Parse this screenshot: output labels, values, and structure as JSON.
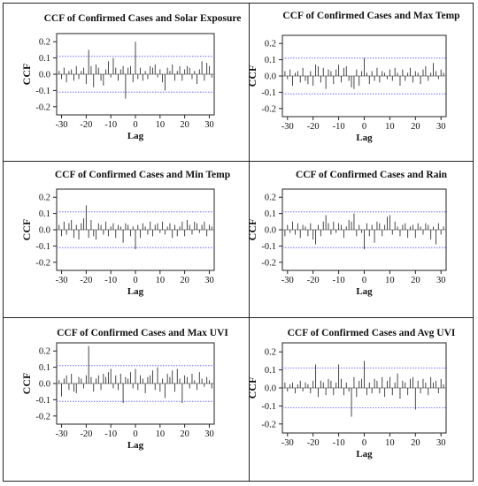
{
  "charts": [
    {
      "title": "CCF of Confirmed Cases and Solar Exposure",
      "ylabel": "CCF",
      "xlabel": "Lag"
    },
    {
      "title": "CCF of Confirmed Cases and Max Temp",
      "ylabel": "CCF",
      "xlabel": "Lag"
    },
    {
      "title": "CCF of Confirmed Cases and Min Temp",
      "ylabel": "CCF",
      "xlabel": "Lag"
    },
    {
      "title": "CCF of Confirmed Cases and Rain",
      "ylabel": "CCF",
      "xlabel": "Lag"
    },
    {
      "title": "CCF of Confirmed Cases and Max UVI",
      "ylabel": "CCF",
      "xlabel": "Lag"
    },
    {
      "title": "CCF of Confirmed Cases and Avg UVI",
      "ylabel": "CCF",
      "xlabel": "Lag"
    }
  ],
  "chart_data": [
    {
      "type": "bar",
      "title": "CCF of Confirmed Cases and Solar Exposure",
      "xlabel": "Lag",
      "ylabel": "CCF",
      "xlim": [
        -32,
        32
      ],
      "ylim": [
        -0.25,
        0.25
      ],
      "xticks": [
        -30,
        -20,
        -10,
        0,
        10,
        20,
        30
      ],
      "yticks": [
        -0.2,
        -0.1,
        0.0,
        0.1,
        0.2
      ],
      "confidence_bound": 0.11,
      "x": [
        -31,
        -30,
        -29,
        -28,
        -27,
        -26,
        -25,
        -24,
        -23,
        -22,
        -21,
        -20,
        -19,
        -18,
        -17,
        -16,
        -15,
        -14,
        -13,
        -12,
        -11,
        -10,
        -9,
        -8,
        -7,
        -6,
        -5,
        -4,
        -3,
        -2,
        -1,
        0,
        1,
        2,
        3,
        4,
        5,
        6,
        7,
        8,
        9,
        10,
        11,
        12,
        13,
        14,
        15,
        16,
        17,
        18,
        19,
        20,
        21,
        22,
        23,
        24,
        25,
        26,
        27,
        28,
        29,
        30,
        31
      ],
      "values": [
        0.02,
        -0.03,
        0.04,
        -0.05,
        0.02,
        0.03,
        -0.04,
        0.05,
        -0.03,
        0.02,
        0.04,
        -0.06,
        0.15,
        0.05,
        -0.08,
        0.06,
        0.04,
        -0.04,
        -0.07,
        0.03,
        0.08,
        -0.02,
        0.1,
        0.04,
        -0.04,
        0.03,
        0.05,
        -0.15,
        0.04,
        0.05,
        -0.05,
        0.2,
        -0.03,
        0.04,
        -0.04,
        0.02,
        -0.03,
        0.05,
        0.04,
        0.06,
        -0.02,
        0.03,
        -0.05,
        -0.1,
        0.04,
        0.02,
        0.06,
        -0.04,
        0.02,
        0.05,
        -0.04,
        0.03,
        0.05,
        0.04,
        -0.03,
        0.02,
        -0.06,
        0.03,
        0.08,
        -0.04,
        0.07,
        0.05,
        -0.02
      ]
    },
    {
      "type": "bar",
      "title": "CCF of Confirmed Cases and Max Temp",
      "xlabel": "Lag",
      "ylabel": "CCF",
      "xlim": [
        -32,
        32
      ],
      "ylim": [
        -0.25,
        0.25
      ],
      "xticks": [
        -30,
        -20,
        -10,
        0,
        10,
        20,
        30
      ],
      "yticks": [
        -0.2,
        -0.1,
        0.0,
        0.1,
        0.2
      ],
      "confidence_bound": 0.11,
      "x": [
        -31,
        -30,
        -29,
        -28,
        -27,
        -26,
        -25,
        -24,
        -23,
        -22,
        -21,
        -20,
        -19,
        -18,
        -17,
        -16,
        -15,
        -14,
        -13,
        -12,
        -11,
        -10,
        -9,
        -8,
        -7,
        -6,
        -5,
        -4,
        -3,
        -2,
        -1,
        0,
        1,
        2,
        3,
        4,
        5,
        6,
        7,
        8,
        9,
        10,
        11,
        12,
        13,
        14,
        15,
        16,
        17,
        18,
        19,
        20,
        21,
        22,
        23,
        24,
        25,
        26,
        27,
        28,
        29,
        30,
        31
      ],
      "values": [
        0.03,
        -0.02,
        0.04,
        -0.06,
        0.02,
        0.03,
        -0.04,
        0.05,
        -0.03,
        -0.05,
        0.03,
        -0.06,
        0.07,
        0.06,
        -0.04,
        0.05,
        -0.08,
        0.04,
        0.03,
        -0.05,
        0.04,
        0.07,
        -0.04,
        0.05,
        0.06,
        -0.03,
        -0.07,
        -0.08,
        0.04,
        -0.06,
        0.03,
        0.11,
        0.02,
        -0.05,
        0.03,
        -0.03,
        0.05,
        -0.04,
        0.03,
        0.02,
        -0.02,
        0.04,
        -0.03,
        0.05,
        0.02,
        -0.06,
        0.04,
        -0.03,
        0.02,
        0.05,
        -0.04,
        0.03,
        0.02,
        -0.05,
        0.04,
        0.06,
        -0.03,
        0.02,
        0.08,
        0.03,
        -0.02,
        0.04,
        0.02
      ]
    },
    {
      "type": "bar",
      "title": "CCF of Confirmed Cases and Min Temp",
      "xlabel": "Lag",
      "ylabel": "CCF",
      "xlim": [
        -32,
        32
      ],
      "ylim": [
        -0.25,
        0.25
      ],
      "xticks": [
        -30,
        -20,
        -10,
        0,
        10,
        20,
        30
      ],
      "yticks": [
        -0.2,
        -0.1,
        0.0,
        0.1,
        0.2
      ],
      "confidence_bound": 0.11,
      "x": [
        -31,
        -30,
        -29,
        -28,
        -27,
        -26,
        -25,
        -24,
        -23,
        -22,
        -21,
        -20,
        -19,
        -18,
        -17,
        -16,
        -15,
        -14,
        -13,
        -12,
        -11,
        -10,
        -9,
        -8,
        -7,
        -6,
        -5,
        -4,
        -3,
        -2,
        -1,
        0,
        1,
        2,
        3,
        4,
        5,
        6,
        7,
        8,
        9,
        10,
        11,
        12,
        13,
        14,
        15,
        16,
        17,
        18,
        19,
        20,
        21,
        22,
        23,
        24,
        25,
        26,
        27,
        28,
        29,
        30,
        31
      ],
      "values": [
        0.03,
        -0.04,
        0.05,
        -0.03,
        0.04,
        0.06,
        -0.05,
        0.03,
        -0.06,
        0.04,
        0.07,
        0.15,
        -0.05,
        0.06,
        -0.04,
        -0.06,
        0.04,
        0.03,
        -0.03,
        0.05,
        -0.04,
        0.02,
        0.04,
        -0.05,
        0.03,
        0.02,
        -0.08,
        0.04,
        0.03,
        -0.04,
        0.02,
        -0.12,
        0.03,
        -0.05,
        0.04,
        0.02,
        -0.03,
        0.05,
        -0.04,
        0.03,
        0.04,
        -0.02,
        0.05,
        -0.03,
        0.02,
        0.04,
        -0.05,
        0.03,
        -0.04,
        0.02,
        0.05,
        -0.04,
        0.06,
        0.03,
        -0.03,
        0.05,
        0.04,
        -0.02,
        0.03,
        0.05,
        -0.04,
        0.03,
        0.02
      ]
    },
    {
      "type": "bar",
      "title": "CCF of Confirmed Cases and Rain",
      "xlabel": "Lag",
      "ylabel": "CCF",
      "xlim": [
        -32,
        32
      ],
      "ylim": [
        -0.25,
        0.25
      ],
      "xticks": [
        -30,
        -20,
        -10,
        0,
        10,
        20,
        30
      ],
      "yticks": [
        -0.2,
        -0.1,
        0.0,
        0.1,
        0.2
      ],
      "confidence_bound": 0.11,
      "x": [
        -31,
        -30,
        -29,
        -28,
        -27,
        -26,
        -25,
        -24,
        -23,
        -22,
        -21,
        -20,
        -19,
        -18,
        -17,
        -16,
        -15,
        -14,
        -13,
        -12,
        -11,
        -10,
        -9,
        -8,
        -7,
        -6,
        -5,
        -4,
        -3,
        -2,
        -1,
        0,
        1,
        2,
        3,
        4,
        5,
        6,
        7,
        8,
        9,
        10,
        11,
        12,
        13,
        14,
        15,
        16,
        17,
        18,
        19,
        20,
        21,
        22,
        23,
        24,
        25,
        26,
        27,
        28,
        29,
        30,
        31
      ],
      "values": [
        -0.04,
        0.03,
        -0.02,
        0.05,
        -0.03,
        0.04,
        -0.05,
        0.03,
        0.02,
        -0.04,
        0.04,
        -0.06,
        -0.09,
        0.03,
        -0.04,
        0.05,
        0.09,
        0.04,
        -0.03,
        0.05,
        -0.02,
        0.04,
        0.03,
        -0.05,
        0.02,
        0.06,
        0.05,
        0.1,
        -0.04,
        0.03,
        -0.02,
        -0.12,
        0.04,
        -0.04,
        0.03,
        -0.08,
        0.05,
        0.04,
        -0.04,
        0.03,
        0.08,
        0.09,
        -0.03,
        0.05,
        0.02,
        -0.04,
        0.03,
        0.04,
        -0.05,
        0.02,
        0.03,
        -0.05,
        0.04,
        0.02,
        -0.03,
        0.04,
        0.03,
        -0.06,
        0.02,
        -0.09,
        0.04,
        -0.03,
        0.02
      ]
    },
    {
      "type": "bar",
      "title": "CCF of Confirmed Cases and Max UVI",
      "xlabel": "Lag",
      "ylabel": "CCF",
      "xlim": [
        -32,
        32
      ],
      "ylim": [
        -0.25,
        0.25
      ],
      "xticks": [
        -30,
        -20,
        -10,
        0,
        10,
        20,
        30
      ],
      "yticks": [
        -0.2,
        -0.1,
        0.0,
        0.1,
        0.2
      ],
      "confidence_bound": 0.11,
      "x": [
        -31,
        -30,
        -29,
        -28,
        -27,
        -26,
        -25,
        -24,
        -23,
        -22,
        -21,
        -20,
        -19,
        -18,
        -17,
        -16,
        -15,
        -14,
        -13,
        -12,
        -11,
        -10,
        -9,
        -8,
        -7,
        -6,
        -5,
        -4,
        -3,
        -2,
        -1,
        0,
        1,
        2,
        3,
        4,
        5,
        6,
        7,
        8,
        9,
        10,
        11,
        12,
        13,
        14,
        15,
        16,
        17,
        18,
        19,
        20,
        21,
        22,
        23,
        24,
        25,
        26,
        27,
        28,
        29,
        30,
        31
      ],
      "values": [
        0.02,
        -0.08,
        0.03,
        0.05,
        -0.04,
        0.06,
        -0.05,
        -0.06,
        0.04,
        0.03,
        -0.03,
        0.05,
        0.23,
        0.04,
        -0.05,
        0.03,
        0.05,
        -0.04,
        0.06,
        0.04,
        0.07,
        0.09,
        -0.03,
        0.05,
        -0.04,
        0.06,
        -0.12,
        0.04,
        0.03,
        0.07,
        -0.03,
        0.09,
        -0.04,
        0.05,
        0.03,
        -0.06,
        0.04,
        0.05,
        0.08,
        -0.04,
        0.1,
        -0.05,
        0.03,
        -0.09,
        0.06,
        0.04,
        0.08,
        -0.05,
        0.09,
        0.03,
        -0.12,
        0.05,
        0.04,
        -0.03,
        0.06,
        0.02,
        -0.04,
        0.07,
        0.03,
        -0.02,
        0.04,
        0.02,
        -0.03
      ]
    },
    {
      "type": "bar",
      "title": "CCF of Confirmed Cases and Avg UVI",
      "xlabel": "Lag",
      "ylabel": "CCF",
      "xlim": [
        -32,
        32
      ],
      "ylim": [
        -0.25,
        0.25
      ],
      "xticks": [
        -30,
        -20,
        -10,
        0,
        10,
        20,
        30
      ],
      "yticks": [
        -0.2,
        -0.1,
        0.0,
        0.1,
        0.2
      ],
      "confidence_bound": 0.11,
      "x": [
        -31,
        -30,
        -29,
        -28,
        -27,
        -26,
        -25,
        -24,
        -23,
        -22,
        -21,
        -20,
        -19,
        -18,
        -17,
        -16,
        -15,
        -14,
        -13,
        -12,
        -11,
        -10,
        -9,
        -8,
        -7,
        -6,
        -5,
        -4,
        -3,
        -2,
        -1,
        0,
        1,
        2,
        3,
        4,
        5,
        6,
        7,
        8,
        9,
        10,
        11,
        12,
        13,
        14,
        15,
        16,
        17,
        18,
        19,
        20,
        21,
        22,
        23,
        24,
        25,
        26,
        27,
        28,
        29,
        30,
        31
      ],
      "values": [
        0.03,
        -0.02,
        0.02,
        0.03,
        -0.03,
        0.02,
        0.04,
        -0.02,
        0.03,
        0.02,
        -0.03,
        0.04,
        0.13,
        -0.05,
        0.04,
        0.03,
        -0.04,
        0.05,
        0.04,
        -0.04,
        0.03,
        0.13,
        0.05,
        -0.04,
        0.03,
        -0.02,
        -0.16,
        0.06,
        -0.05,
        0.04,
        0.05,
        0.15,
        -0.04,
        0.03,
        -0.03,
        0.05,
        0.04,
        -0.03,
        0.06,
        -0.05,
        0.04,
        0.06,
        -0.04,
        0.03,
        0.08,
        -0.06,
        0.04,
        0.03,
        -0.04,
        0.05,
        0.06,
        -0.12,
        0.04,
        -0.03,
        0.05,
        0.03,
        -0.04,
        0.06,
        0.03,
        0.04,
        -0.03,
        0.05,
        0.02
      ]
    }
  ]
}
